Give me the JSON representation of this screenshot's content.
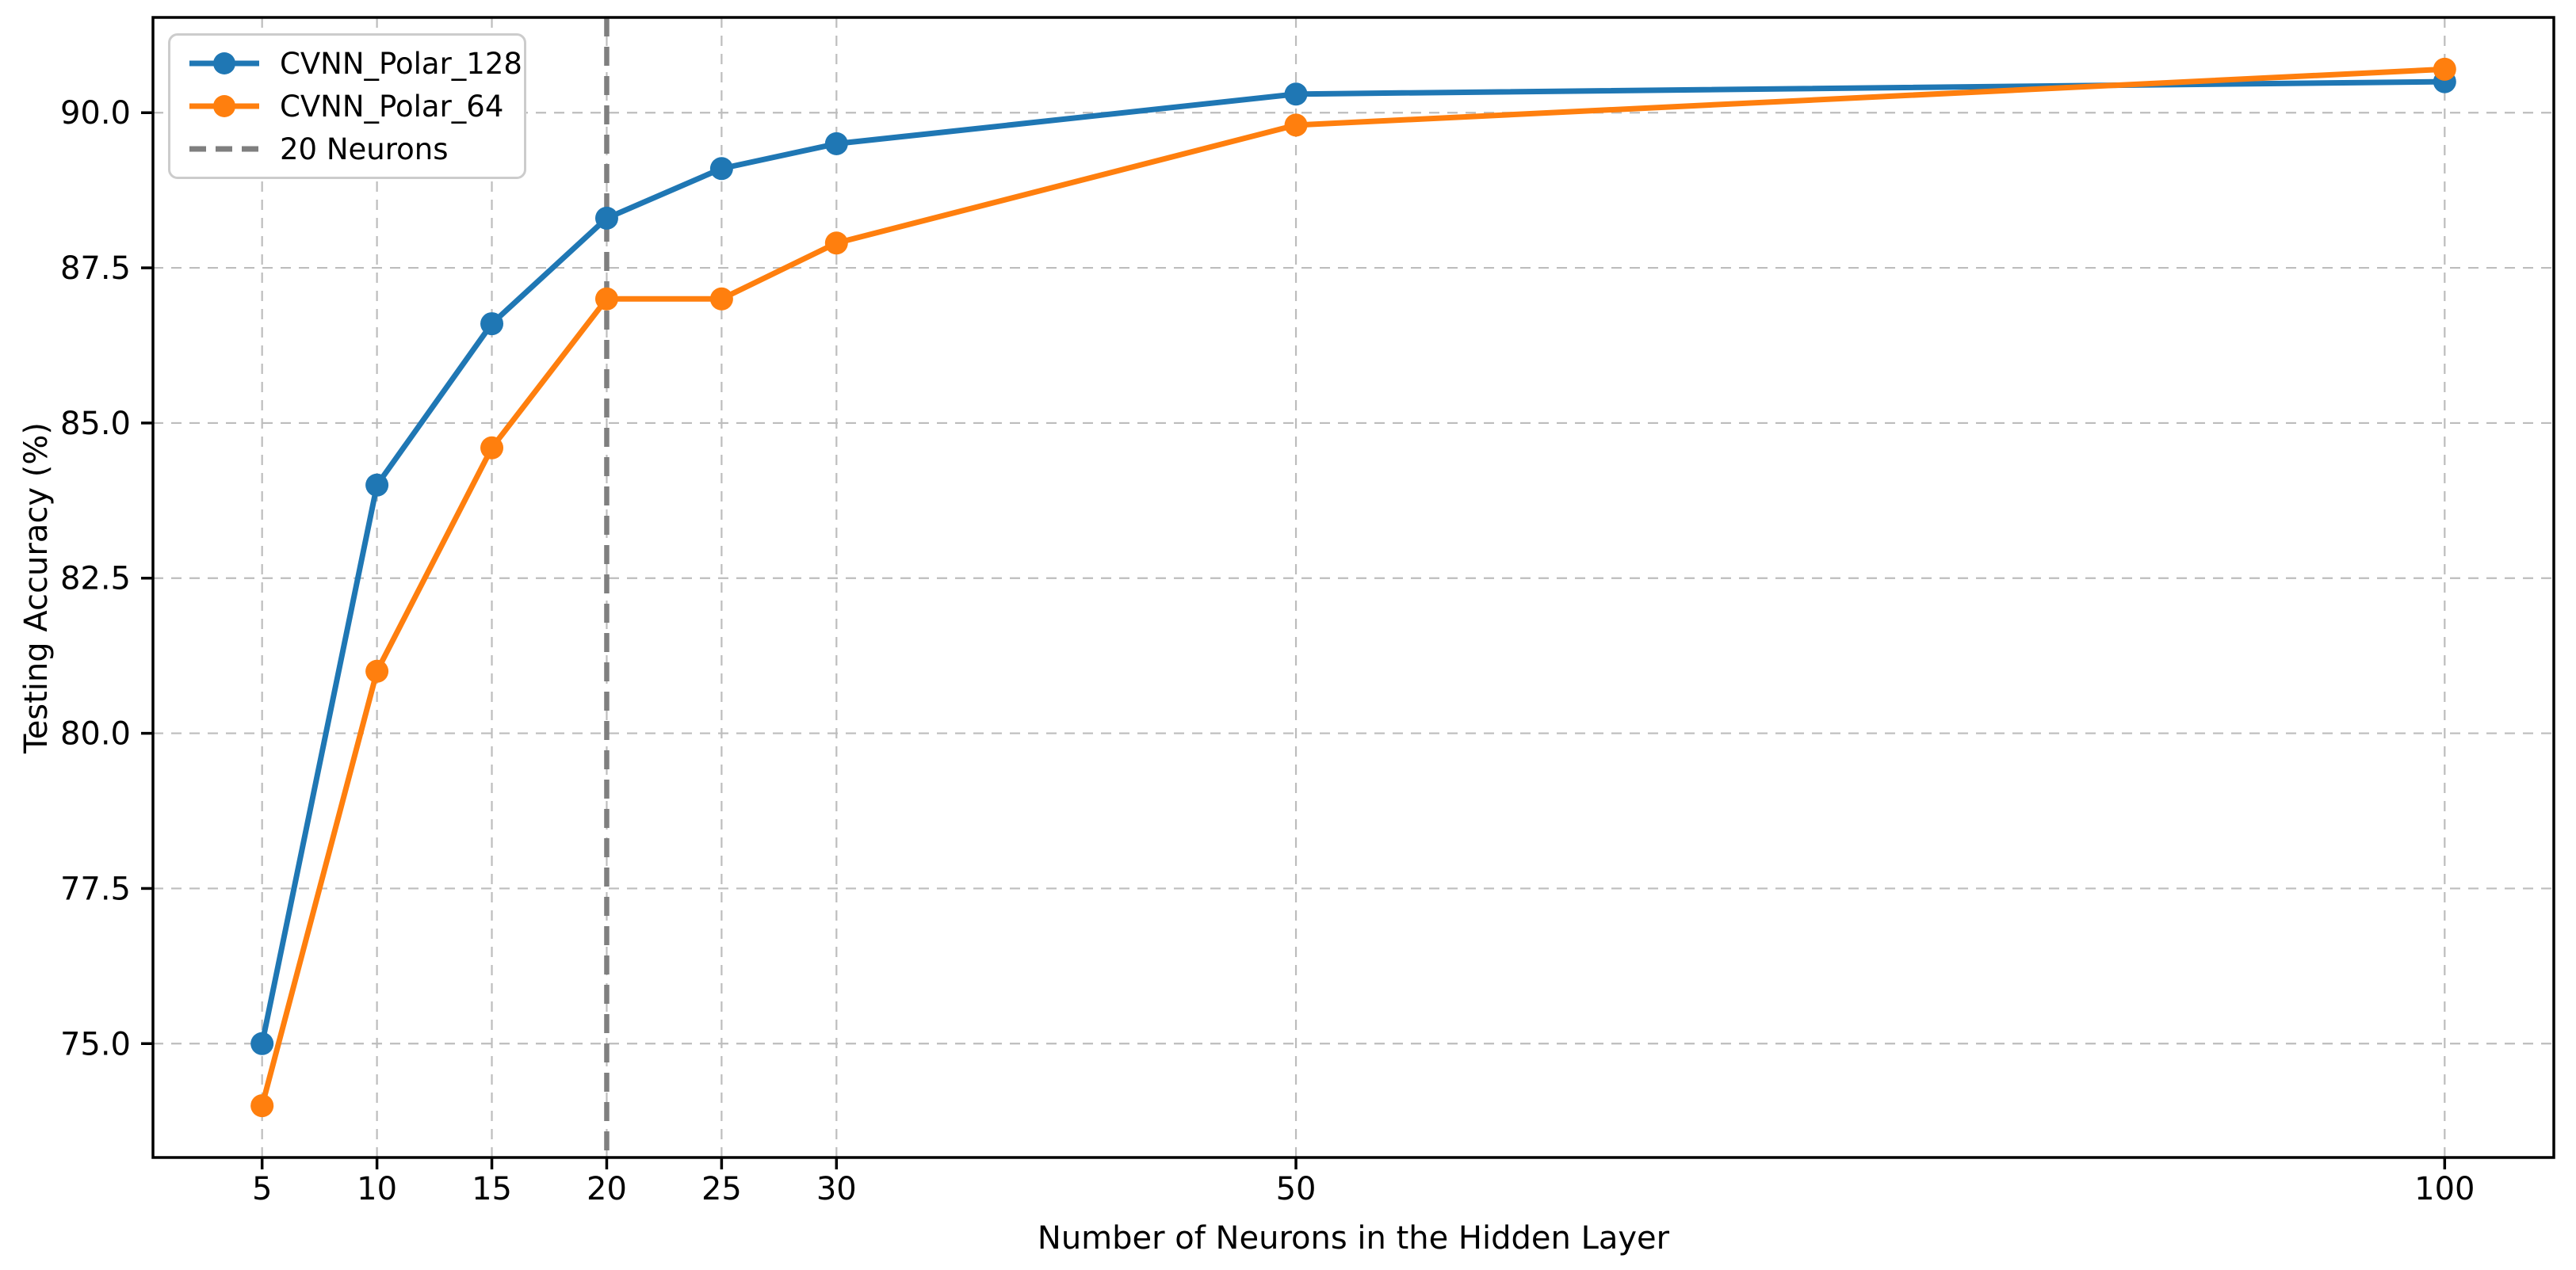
{
  "chart_data": {
    "type": "line",
    "title": "",
    "xlabel": "Number of Neurons in the Hidden Layer",
    "ylabel": "Testing Accuracy (%)",
    "x": [
      5,
      10,
      15,
      20,
      25,
      30,
      50,
      100
    ],
    "series": [
      {
        "name": "CVNN_Polar_128",
        "color": "#1f77b4",
        "marker": "circle",
        "values": [
          75.0,
          84.0,
          86.6,
          88.3,
          89.1,
          89.5,
          90.3,
          90.5
        ]
      },
      {
        "name": "CVNN_Polar_64",
        "color": "#ff7f0e",
        "marker": "circle",
        "values": [
          74.0,
          81.0,
          84.6,
          87.0,
          87.0,
          87.9,
          89.8,
          90.7
        ]
      }
    ],
    "vline": {
      "x": 20,
      "label": "20 Neurons",
      "color": "#7f7f7f",
      "style": "dashed"
    },
    "xlim": [
      0.25,
      104.75
    ],
    "ylim": [
      73.165,
      91.535
    ],
    "x_ticks": [
      5,
      10,
      15,
      20,
      25,
      30,
      50,
      100
    ],
    "x_tick_labels": [
      "5",
      "10",
      "15",
      "20",
      "25",
      "30",
      "50",
      "100"
    ],
    "y_ticks": [
      75.0,
      77.5,
      80.0,
      82.5,
      85.0,
      87.5,
      90.0
    ],
    "y_tick_labels": [
      "75.0",
      "77.5",
      "80.0",
      "82.5",
      "85.0",
      "87.5",
      "90.0"
    ],
    "grid": true,
    "grid_style": "dashed",
    "grid_color": "#bdbdbd",
    "axis_color": "#000000",
    "background_color": "#ffffff",
    "legend_position": "upper-left"
  }
}
